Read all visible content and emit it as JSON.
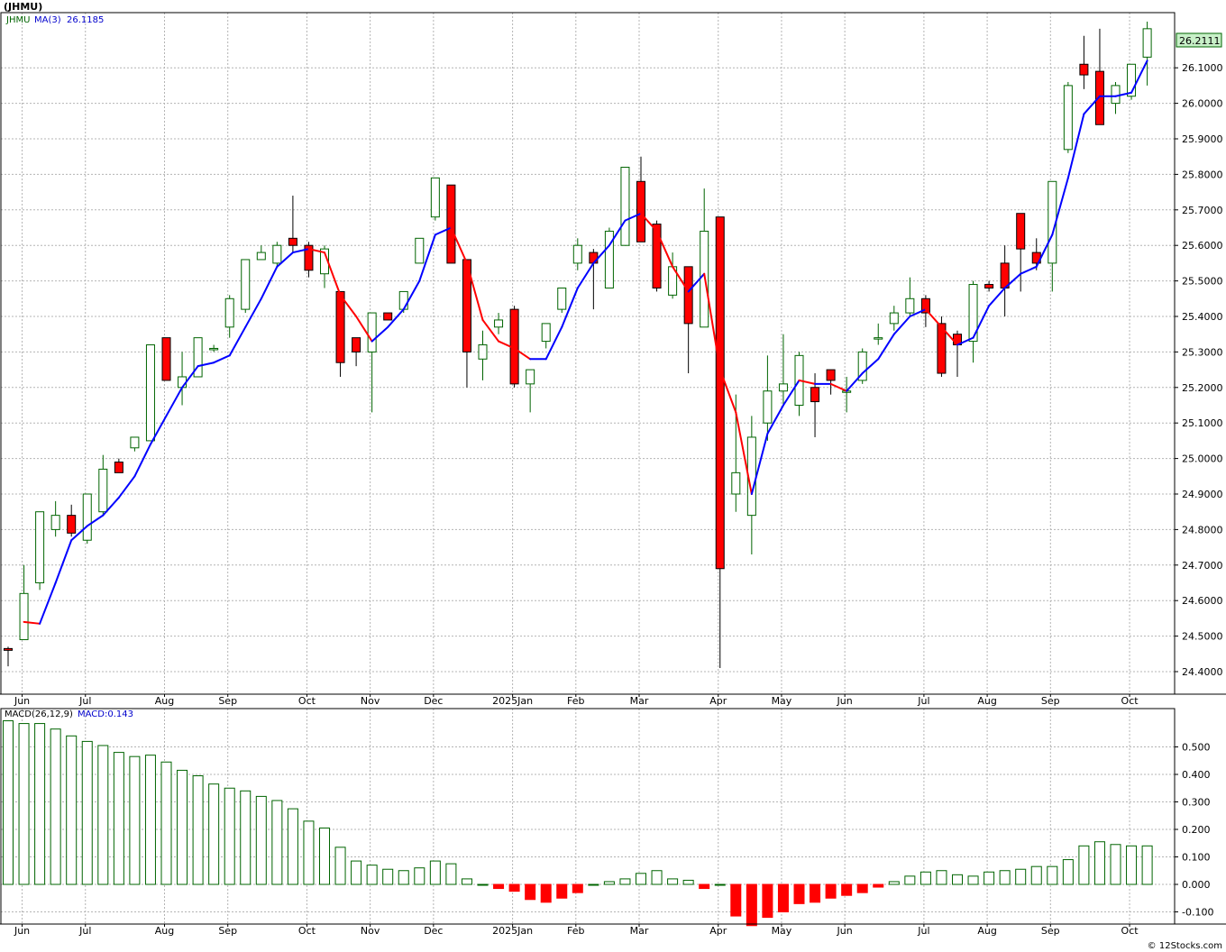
{
  "header": {
    "symbol_title": "(JHMU)",
    "legend_symbol": "JHMU",
    "legend_ma_label": "MA(3)",
    "legend_ma_value": "26.1185",
    "macd_label": "MACD(26,12,9)",
    "macd_value_label": "MACD:0.143",
    "last_price_badge": "26.2111",
    "footer_credit": "© 12Stocks.com"
  },
  "colors": {
    "up_candle_border": "#006400",
    "down_candle": "#ff0000",
    "ma_up": "#0000ff",
    "ma_down": "#ff0000",
    "macd_pos": "#006400",
    "macd_neg": "#ff0000",
    "badge_bg": "#c8f0c8"
  },
  "chart_data": [
    {
      "type": "candlestick",
      "title": "(JHMU)",
      "y_ticks": [
        "24.4000",
        "24.5000",
        "24.6000",
        "24.7000",
        "24.8000",
        "24.9000",
        "25.0000",
        "25.1000",
        "25.2000",
        "25.3000",
        "25.4000",
        "25.5000",
        "25.6000",
        "25.7000",
        "25.8000",
        "25.9000",
        "26.0000",
        "26.1000"
      ],
      "x_labels": [
        "Jun",
        "Jul",
        "Aug",
        "Sep",
        "Oct",
        "Nov",
        "Dec",
        "2025Jan",
        "Feb",
        "Mar",
        "Apr",
        "May",
        "Jun",
        "Jul",
        "Aug",
        "Sep",
        "Oct"
      ],
      "x_label_weeks": [
        1,
        5,
        10,
        14,
        19,
        23,
        27,
        32,
        36,
        40,
        45,
        49,
        53,
        58,
        62,
        66,
        71
      ],
      "ohlc": [
        [
          24.465,
          24.47,
          24.415,
          24.46
        ],
        [
          24.49,
          24.7,
          24.49,
          24.62
        ],
        [
          24.65,
          24.85,
          24.63,
          24.85
        ],
        [
          24.8,
          24.88,
          24.78,
          24.84
        ],
        [
          24.84,
          24.87,
          24.78,
          24.79
        ],
        [
          24.77,
          24.9,
          24.76,
          24.9
        ],
        [
          24.85,
          25.01,
          24.84,
          24.97
        ],
        [
          24.99,
          25.0,
          24.96,
          24.96
        ],
        [
          25.03,
          25.06,
          25.02,
          25.06
        ],
        [
          25.05,
          25.32,
          25.05,
          25.32
        ],
        [
          25.34,
          25.34,
          25.22,
          25.22
        ],
        [
          25.2,
          25.3,
          25.15,
          25.23
        ],
        [
          25.23,
          25.34,
          25.23,
          25.34
        ],
        [
          25.31,
          25.32,
          25.3,
          25.31
        ],
        [
          25.37,
          25.46,
          25.34,
          25.45
        ],
        [
          25.42,
          25.56,
          25.41,
          25.56
        ],
        [
          25.56,
          25.6,
          25.56,
          25.58
        ],
        [
          25.55,
          25.61,
          25.54,
          25.6
        ],
        [
          25.62,
          25.74,
          25.58,
          25.6
        ],
        [
          25.6,
          25.61,
          25.51,
          25.53
        ],
        [
          25.52,
          25.6,
          25.48,
          25.59
        ],
        [
          25.47,
          25.47,
          25.23,
          25.27
        ],
        [
          25.34,
          25.34,
          25.26,
          25.3
        ],
        [
          25.3,
          25.4,
          25.13,
          25.41
        ],
        [
          25.41,
          25.41,
          25.39,
          25.39
        ],
        [
          25.42,
          25.47,
          25.41,
          25.47
        ],
        [
          25.55,
          25.62,
          25.55,
          25.62
        ],
        [
          25.68,
          25.79,
          25.67,
          25.79
        ],
        [
          25.77,
          25.77,
          25.55,
          25.55
        ],
        [
          25.56,
          25.56,
          25.2,
          25.3
        ],
        [
          25.28,
          25.36,
          25.22,
          25.32
        ],
        [
          25.37,
          25.41,
          25.35,
          25.39
        ],
        [
          25.42,
          25.43,
          25.2,
          25.21
        ],
        [
          25.21,
          25.25,
          25.13,
          25.25
        ],
        [
          25.33,
          25.38,
          25.31,
          25.38
        ],
        [
          25.42,
          25.48,
          25.41,
          25.48
        ],
        [
          25.55,
          25.62,
          25.53,
          25.6
        ],
        [
          25.58,
          25.59,
          25.42,
          25.55
        ],
        [
          25.48,
          25.65,
          25.48,
          25.64
        ],
        [
          25.6,
          25.82,
          25.6,
          25.82
        ],
        [
          25.78,
          25.85,
          25.61,
          25.61
        ],
        [
          25.66,
          25.67,
          25.47,
          25.48
        ],
        [
          25.46,
          25.58,
          25.45,
          25.54
        ],
        [
          25.54,
          25.54,
          25.24,
          25.38
        ],
        [
          25.37,
          25.76,
          25.37,
          25.64
        ],
        [
          25.68,
          25.68,
          24.41,
          24.69
        ],
        [
          24.9,
          25.18,
          24.85,
          24.96
        ],
        [
          24.84,
          25.12,
          24.73,
          25.06
        ],
        [
          25.1,
          25.29,
          25.05,
          25.19
        ],
        [
          25.19,
          25.35,
          25.15,
          25.21
        ],
        [
          25.15,
          25.3,
          25.12,
          25.29
        ],
        [
          25.2,
          25.24,
          25.06,
          25.16
        ],
        [
          25.25,
          25.25,
          25.18,
          25.22
        ],
        [
          25.19,
          25.23,
          25.13,
          25.19
        ],
        [
          25.22,
          25.31,
          25.21,
          25.3
        ],
        [
          25.34,
          25.38,
          25.32,
          25.34
        ],
        [
          25.38,
          25.43,
          25.36,
          25.41
        ],
        [
          25.41,
          25.51,
          25.4,
          25.45
        ],
        [
          25.45,
          25.46,
          25.37,
          25.41
        ],
        [
          25.38,
          25.4,
          25.23,
          25.24
        ],
        [
          25.35,
          25.36,
          25.23,
          25.32
        ],
        [
          25.33,
          25.5,
          25.27,
          25.49
        ],
        [
          25.49,
          25.5,
          25.47,
          25.48
        ],
        [
          25.55,
          25.6,
          25.4,
          25.48
        ],
        [
          25.69,
          25.69,
          25.47,
          25.59
        ],
        [
          25.58,
          25.62,
          25.53,
          25.55
        ],
        [
          25.55,
          25.78,
          25.47,
          25.78
        ],
        [
          25.87,
          26.06,
          25.86,
          26.05
        ],
        [
          26.11,
          26.19,
          26.04,
          26.08
        ],
        [
          26.09,
          26.21,
          25.94,
          25.94
        ],
        [
          26.0,
          26.06,
          25.97,
          26.05
        ],
        [
          26.02,
          26.11,
          26.01,
          26.11
        ],
        [
          26.13,
          26.23,
          26.05,
          26.21
        ]
      ],
      "ma3": [
        null,
        24.54,
        24.535,
        24.65,
        24.77,
        24.81,
        24.84,
        24.89,
        24.95,
        25.04,
        25.12,
        25.2,
        25.26,
        25.27,
        25.29,
        25.37,
        25.45,
        25.54,
        25.58,
        25.59,
        25.58,
        25.46,
        25.4,
        25.33,
        25.37,
        25.42,
        25.5,
        25.63,
        25.65,
        25.55,
        25.39,
        25.33,
        25.31,
        25.28,
        25.28,
        25.37,
        25.48,
        25.55,
        25.6,
        25.67,
        25.69,
        25.64,
        25.54,
        25.47,
        25.52,
        25.25,
        25.13,
        24.9,
        25.07,
        25.15,
        25.22,
        25.21,
        25.21,
        25.19,
        25.24,
        25.28,
        25.35,
        25.4,
        25.42,
        25.37,
        25.32,
        25.34,
        25.43,
        25.48,
        25.52,
        25.54,
        25.63,
        25.79,
        25.97,
        26.02,
        26.02,
        26.03,
        26.12
      ],
      "last": 26.2111
    },
    {
      "type": "bar",
      "title": "MACD(26,12,9)",
      "y_ticks": [
        "-0.100",
        "0.000",
        "0.100",
        "0.200",
        "0.300",
        "0.400",
        "0.500"
      ],
      "x_labels": [
        "Jun",
        "Jul",
        "Aug",
        "Sep",
        "Oct",
        "Nov",
        "Dec",
        "2025Jan",
        "Feb",
        "Mar",
        "Apr",
        "May",
        "Jun",
        "Jul",
        "Aug",
        "Sep",
        "Oct"
      ],
      "values": [
        0.595,
        0.585,
        0.585,
        0.565,
        0.54,
        0.52,
        0.505,
        0.48,
        0.465,
        0.47,
        0.445,
        0.415,
        0.395,
        0.365,
        0.35,
        0.34,
        0.32,
        0.305,
        0.275,
        0.23,
        0.205,
        0.135,
        0.085,
        0.07,
        0.055,
        0.05,
        0.06,
        0.085,
        0.075,
        0.02,
        0.0,
        -0.015,
        -0.025,
        -0.055,
        -0.065,
        -0.05,
        -0.03,
        0.0,
        0.01,
        0.02,
        0.04,
        0.05,
        0.02,
        0.015,
        -0.015,
        0.0,
        -0.115,
        -0.15,
        -0.12,
        -0.1,
        -0.07,
        -0.065,
        -0.05,
        -0.04,
        -0.03,
        -0.01,
        0.01,
        0.03,
        0.045,
        0.05,
        0.035,
        0.03,
        0.045,
        0.05,
        0.055,
        0.065,
        0.065,
        0.09,
        0.14,
        0.155,
        0.145,
        0.14,
        0.14
      ],
      "last": 0.143
    }
  ]
}
